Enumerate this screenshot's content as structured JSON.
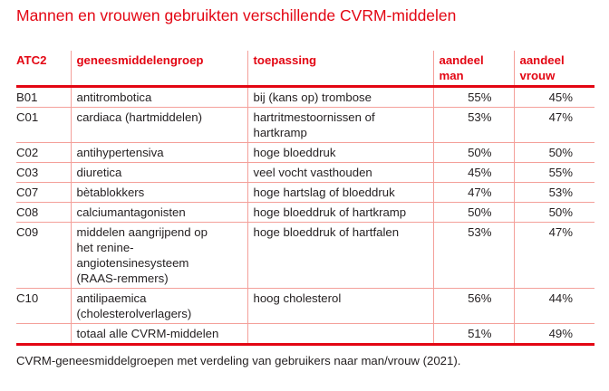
{
  "title": "Mannen en vrouwen gebruikten verschillende CVRM-middelen",
  "colors": {
    "accent": "#e30613",
    "grid": "#f4a09a"
  },
  "table": {
    "headers": [
      "ATC2",
      "geneesmiddelengroep",
      "toepassing",
      "aandeel man",
      "aandeel vrouw"
    ],
    "rows": [
      [
        "B01",
        "antitrombotica",
        "bij (kans op) trombose",
        "55%",
        "45%"
      ],
      [
        "C01",
        "cardiaca (hartmiddelen)",
        "hartritmestoornissen of hartkramp",
        "53%",
        "47%"
      ],
      [
        "C02",
        "antihypertensiva",
        "hoge bloeddruk",
        "50%",
        "50%"
      ],
      [
        "C03",
        "diuretica",
        "veel vocht vasthouden",
        "45%",
        "55%"
      ],
      [
        "C07",
        "bètablokkers",
        "hoge hartslag of bloeddruk",
        "47%",
        "53%"
      ],
      [
        "C08",
        "calciumantagonisten",
        "hoge bloeddruk of hartkramp",
        "50%",
        "50%"
      ],
      [
        "C09",
        "middelen aangrijpend op het renine-angiotensinesysteem (RAAS-remmers)",
        "hoge bloeddruk of hartfalen",
        "53%",
        "47%"
      ],
      [
        "C10",
        "antilipaemica (cholesterolverlagers)",
        "hoog cholesterol",
        "56%",
        "44%"
      ],
      [
        "",
        "totaal alle CVRM-middelen",
        "",
        "51%",
        "49%"
      ]
    ]
  },
  "caption": "CVRM-geneesmiddelgroepen met verdeling van gebruikers naar man/vrouw (2021)."
}
